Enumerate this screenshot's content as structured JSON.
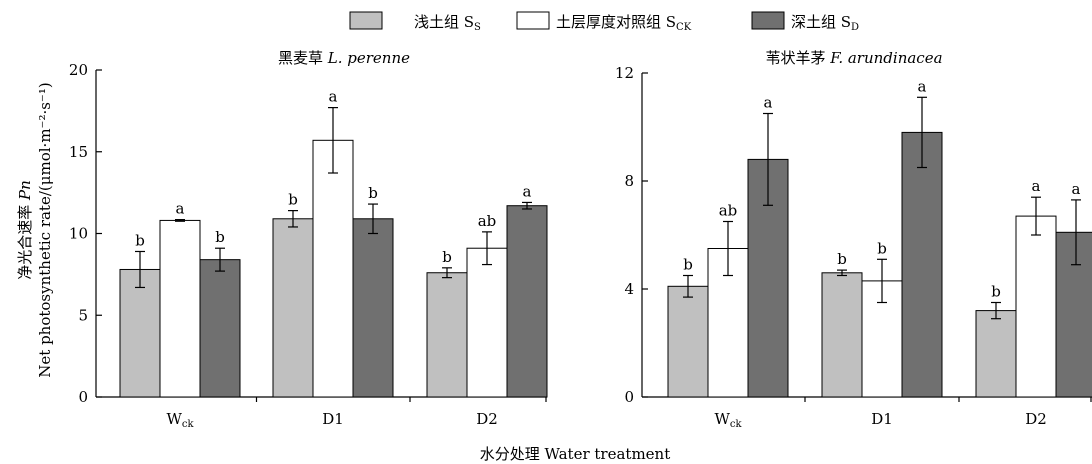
{
  "legend": {
    "items": [
      {
        "label": "浅土组 S",
        "sub": "S",
        "color": "#c0c0c0"
      },
      {
        "label": "土层厚度对照组 S",
        "sub": "CK",
        "color": "#ffffff"
      },
      {
        "label": "深土组 S",
        "sub": "D",
        "color": "#707070"
      }
    ]
  },
  "ylabel": {
    "zh_prefix": "净光合速率 ",
    "zh_symbol": "Pn",
    "en": "Net photosynthetic rate/(μmol·m⁻²·s⁻¹)"
  },
  "xlabel": "水分处理  Water treatment",
  "chart_data": [
    {
      "type": "bar",
      "title_zh": "黑麦草 ",
      "title_latin": "L. perenne",
      "categories": [
        "Wck",
        "D1",
        "D2"
      ],
      "category_labels": [
        [
          "W",
          "ck"
        ],
        [
          "D1",
          ""
        ],
        [
          "D2",
          ""
        ]
      ],
      "ylim": [
        0,
        20
      ],
      "yticks": [
        0,
        5,
        10,
        15,
        20
      ],
      "series": [
        {
          "name": "浅土组 SS",
          "color": "#c0c0c0",
          "values": [
            7.8,
            10.9,
            7.6
          ],
          "errors": [
            1.1,
            0.5,
            0.3
          ],
          "letters": [
            "b",
            "b",
            "b"
          ]
        },
        {
          "name": "土层厚度对照组 SCK",
          "color": "#ffffff",
          "values": [
            10.8,
            15.7,
            9.1
          ],
          "errors": [
            0.05,
            2.0,
            1.0
          ],
          "letters": [
            "a",
            "a",
            "ab"
          ]
        },
        {
          "name": "深土组 SD",
          "color": "#707070",
          "values": [
            8.4,
            10.9,
            11.7
          ],
          "errors": [
            0.7,
            0.9,
            0.2
          ],
          "letters": [
            "b",
            "b",
            "a"
          ]
        }
      ]
    },
    {
      "type": "bar",
      "title_zh": "苇状羊茅 ",
      "title_latin": "F. arundinacea",
      "categories": [
        "Wck",
        "D1",
        "D2"
      ],
      "category_labels": [
        [
          "W",
          "ck"
        ],
        [
          "D1",
          ""
        ],
        [
          "D2",
          ""
        ]
      ],
      "ylim": [
        0,
        12
      ],
      "yticks": [
        0,
        4,
        8,
        12
      ],
      "series": [
        {
          "name": "浅土组 SS",
          "color": "#c0c0c0",
          "values": [
            4.1,
            4.6,
            3.2
          ],
          "errors": [
            0.4,
            0.1,
            0.3
          ],
          "letters": [
            "b",
            "b",
            "b"
          ]
        },
        {
          "name": "土层厚度对照组 SCK",
          "color": "#ffffff",
          "values": [
            5.5,
            4.3,
            6.7
          ],
          "errors": [
            1.0,
            0.8,
            0.7
          ],
          "letters": [
            "ab",
            "b",
            "a"
          ]
        },
        {
          "name": "深土组 SD",
          "color": "#707070",
          "values": [
            8.8,
            9.8,
            6.1
          ],
          "errors": [
            1.7,
            1.3,
            1.2
          ],
          "letters": [
            "a",
            "a",
            "a"
          ]
        }
      ]
    }
  ]
}
